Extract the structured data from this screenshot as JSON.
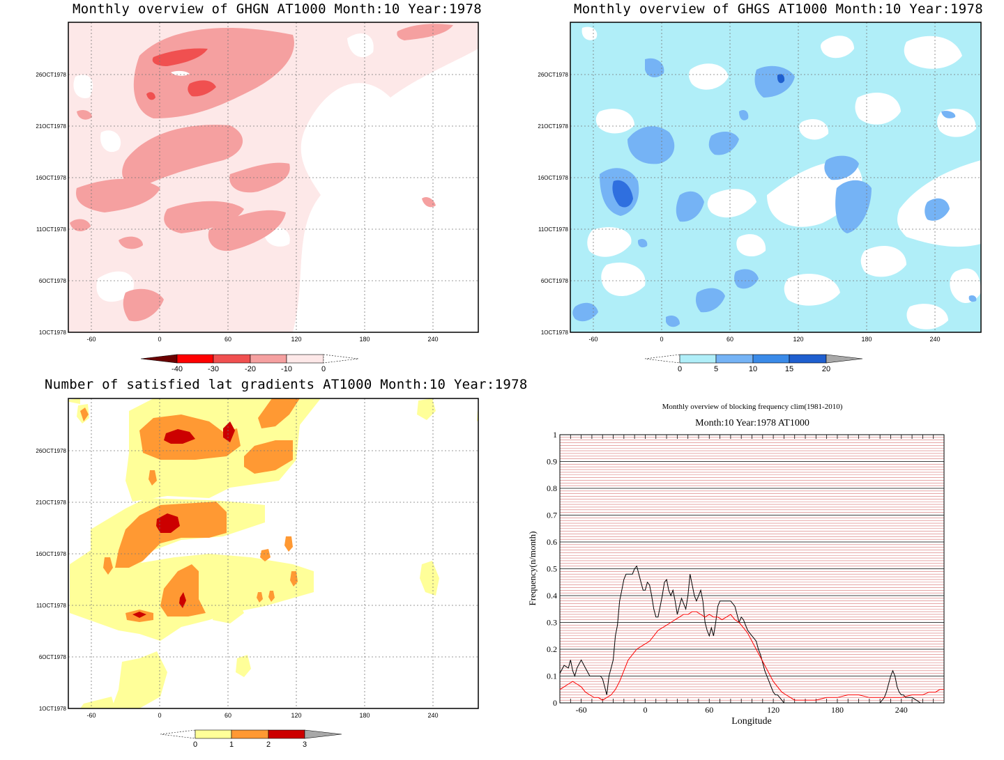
{
  "chart_data": [
    {
      "type": "heatmap",
      "title": "Monthly overview of GHGN AT1000 Month:10 Year:1978",
      "x_ticks": [
        -60,
        0,
        60,
        120,
        180,
        240
      ],
      "xlim": [
        -80,
        280
      ],
      "y_ticks": [
        "1OCT1978",
        "6OCT1978",
        "11OCT1978",
        "16OCT1978",
        "21OCT1978",
        "26OCT1978"
      ],
      "ylim": [
        1,
        31
      ],
      "colorbar": {
        "levels": [
          -40,
          -30,
          -20,
          -10,
          0
        ],
        "colors": [
          "#6b0000",
          "#ff0000",
          "#f05050",
          "#f5a0a0",
          "#fde8e8"
        ],
        "extend": "both"
      },
      "grid": true
    },
    {
      "type": "heatmap",
      "title": "Monthly overview of GHGS AT1000 Month:10 Year:1978",
      "x_ticks": [
        -60,
        0,
        60,
        120,
        180,
        240
      ],
      "xlim": [
        -80,
        280
      ],
      "y_ticks": [
        "1OCT1978",
        "6OCT1978",
        "11OCT1978",
        "16OCT1978",
        "21OCT1978",
        "26OCT1978"
      ],
      "ylim": [
        1,
        31
      ],
      "colorbar": {
        "levels": [
          0,
          5,
          10,
          15,
          20
        ],
        "colors": [
          "#b0eef8",
          "#75b3f5",
          "#3a8ae8",
          "#1f5fcf",
          "#a8a8a8"
        ],
        "extend": "both"
      },
      "grid": true
    },
    {
      "type": "heatmap",
      "title": "Number of satisfied lat gradients AT1000 Month:10 Year:1978",
      "x_ticks": [
        -60,
        0,
        60,
        120,
        180,
        240
      ],
      "xlim": [
        -80,
        280
      ],
      "y_ticks": [
        "1OCT1978",
        "6OCT1978",
        "11OCT1978",
        "16OCT1978",
        "21OCT1978",
        "26OCT1978"
      ],
      "ylim": [
        1,
        31
      ],
      "colorbar": {
        "levels": [
          0,
          1,
          2,
          3
        ],
        "colors": [
          "#ffff99",
          "#ff9933",
          "#cc0000",
          "#a8a8a8"
        ],
        "extend": "both"
      },
      "grid": true
    },
    {
      "type": "line",
      "title": "Monthly overview of blocking frequency clim(1981-2010)",
      "subtitle": "Month:10 Year:1978  AT1000",
      "xlabel": "Longitude",
      "ylabel": "Frequency(n/month)",
      "xlim": [
        -80,
        280
      ],
      "ylim": [
        0,
        1
      ],
      "x_ticks": [
        -60,
        0,
        60,
        120,
        180,
        240
      ],
      "y_ticks": [
        "0",
        "0.1",
        "0.2",
        "0.3",
        "0.4",
        "0.5",
        "0.6",
        "0.7",
        "0.8",
        "0.9",
        "1"
      ],
      "series": [
        {
          "color": "#000000",
          "x": [
            -80,
            -76,
            -72,
            -70,
            -68,
            -66,
            -64,
            -60,
            -56,
            -52,
            -48,
            -46,
            -44,
            -42,
            -40,
            -38,
            -36,
            -34,
            -32,
            -30,
            -28,
            -26,
            -24,
            -22,
            -20,
            -18,
            -16,
            -14,
            -12,
            -10,
            -8,
            -6,
            -4,
            -2,
            0,
            2,
            4,
            6,
            8,
            10,
            12,
            14,
            16,
            18,
            20,
            22,
            24,
            26,
            28,
            30,
            32,
            34,
            36,
            38,
            40,
            42,
            44,
            46,
            48,
            50,
            52,
            54,
            56,
            58,
            60,
            62,
            64,
            66,
            68,
            70,
            72,
            74,
            76,
            78,
            80,
            82,
            84,
            86,
            88,
            90,
            92,
            94,
            96,
            98,
            100,
            102,
            104,
            106,
            108,
            110,
            112,
            114,
            116,
            118,
            120,
            122,
            124,
            126,
            128,
            130,
            132,
            134,
            136,
            138,
            140,
            142,
            144,
            146,
            148,
            150,
            160,
            170,
            180,
            190,
            200,
            210,
            220,
            224,
            226,
            228,
            230,
            232,
            234,
            236,
            238,
            240,
            242,
            244,
            246,
            248,
            250,
            254,
            258
          ],
          "y": [
            0.11,
            0.14,
            0.13,
            0.16,
            0.12,
            0.1,
            0.13,
            0.16,
            0.13,
            0.1,
            0.1,
            0.1,
            0.1,
            0.1,
            0.09,
            0.06,
            0.03,
            0.1,
            0.13,
            0.16,
            0.25,
            0.29,
            0.38,
            0.42,
            0.46,
            0.48,
            0.48,
            0.48,
            0.48,
            0.5,
            0.51,
            0.48,
            0.45,
            0.42,
            0.42,
            0.45,
            0.44,
            0.4,
            0.35,
            0.32,
            0.32,
            0.36,
            0.4,
            0.45,
            0.46,
            0.42,
            0.4,
            0.42,
            0.38,
            0.33,
            0.36,
            0.39,
            0.37,
            0.35,
            0.4,
            0.48,
            0.44,
            0.4,
            0.38,
            0.4,
            0.42,
            0.38,
            0.3,
            0.27,
            0.25,
            0.28,
            0.25,
            0.3,
            0.36,
            0.38,
            0.38,
            0.38,
            0.38,
            0.38,
            0.38,
            0.37,
            0.36,
            0.33,
            0.3,
            0.32,
            0.31,
            0.29,
            0.27,
            0.26,
            0.25,
            0.24,
            0.23,
            0.2,
            0.18,
            0.15,
            0.12,
            0.1,
            0.08,
            0.06,
            0.04,
            0.03,
            0.03,
            0.02,
            0.01,
            0.0,
            0.0,
            0.0,
            0.0,
            0.0,
            0.0,
            0.0,
            0.0,
            0.0,
            0.0,
            0.0,
            0.0,
            0.0,
            0.0,
            0.0,
            0.0,
            0.0,
            0.0,
            0.02,
            0.04,
            0.07,
            0.1,
            0.12,
            0.1,
            0.06,
            0.04,
            0.03,
            0.03,
            0.02,
            0.02,
            0.02,
            0.02,
            0.01,
            0.0
          ]
        },
        {
          "color": "#ff0000",
          "x": [
            -80,
            -76,
            -72,
            -68,
            -64,
            -60,
            -56,
            -52,
            -48,
            -44,
            -40,
            -36,
            -32,
            -28,
            -24,
            -20,
            -16,
            -12,
            -8,
            -4,
            0,
            4,
            8,
            12,
            16,
            20,
            24,
            28,
            32,
            36,
            40,
            44,
            48,
            52,
            56,
            60,
            64,
            68,
            72,
            76,
            80,
            84,
            88,
            92,
            96,
            100,
            104,
            108,
            112,
            116,
            120,
            124,
            128,
            132,
            136,
            140,
            144,
            148,
            152,
            156,
            160,
            170,
            180,
            190,
            200,
            210,
            220,
            230,
            240,
            250,
            260,
            266,
            272,
            276,
            280
          ],
          "y": [
            0.05,
            0.06,
            0.07,
            0.08,
            0.07,
            0.06,
            0.04,
            0.03,
            0.02,
            0.02,
            0.01,
            0.02,
            0.03,
            0.05,
            0.08,
            0.12,
            0.16,
            0.18,
            0.2,
            0.21,
            0.22,
            0.23,
            0.25,
            0.27,
            0.28,
            0.29,
            0.3,
            0.31,
            0.32,
            0.33,
            0.33,
            0.34,
            0.34,
            0.33,
            0.32,
            0.33,
            0.32,
            0.32,
            0.31,
            0.32,
            0.33,
            0.31,
            0.3,
            0.28,
            0.26,
            0.23,
            0.2,
            0.17,
            0.14,
            0.11,
            0.08,
            0.06,
            0.04,
            0.03,
            0.02,
            0.01,
            0.01,
            0.01,
            0.01,
            0.01,
            0.01,
            0.02,
            0.02,
            0.03,
            0.03,
            0.02,
            0.02,
            0.02,
            0.02,
            0.03,
            0.03,
            0.04,
            0.04,
            0.05,
            0.05
          ]
        }
      ],
      "grid": true
    }
  ]
}
